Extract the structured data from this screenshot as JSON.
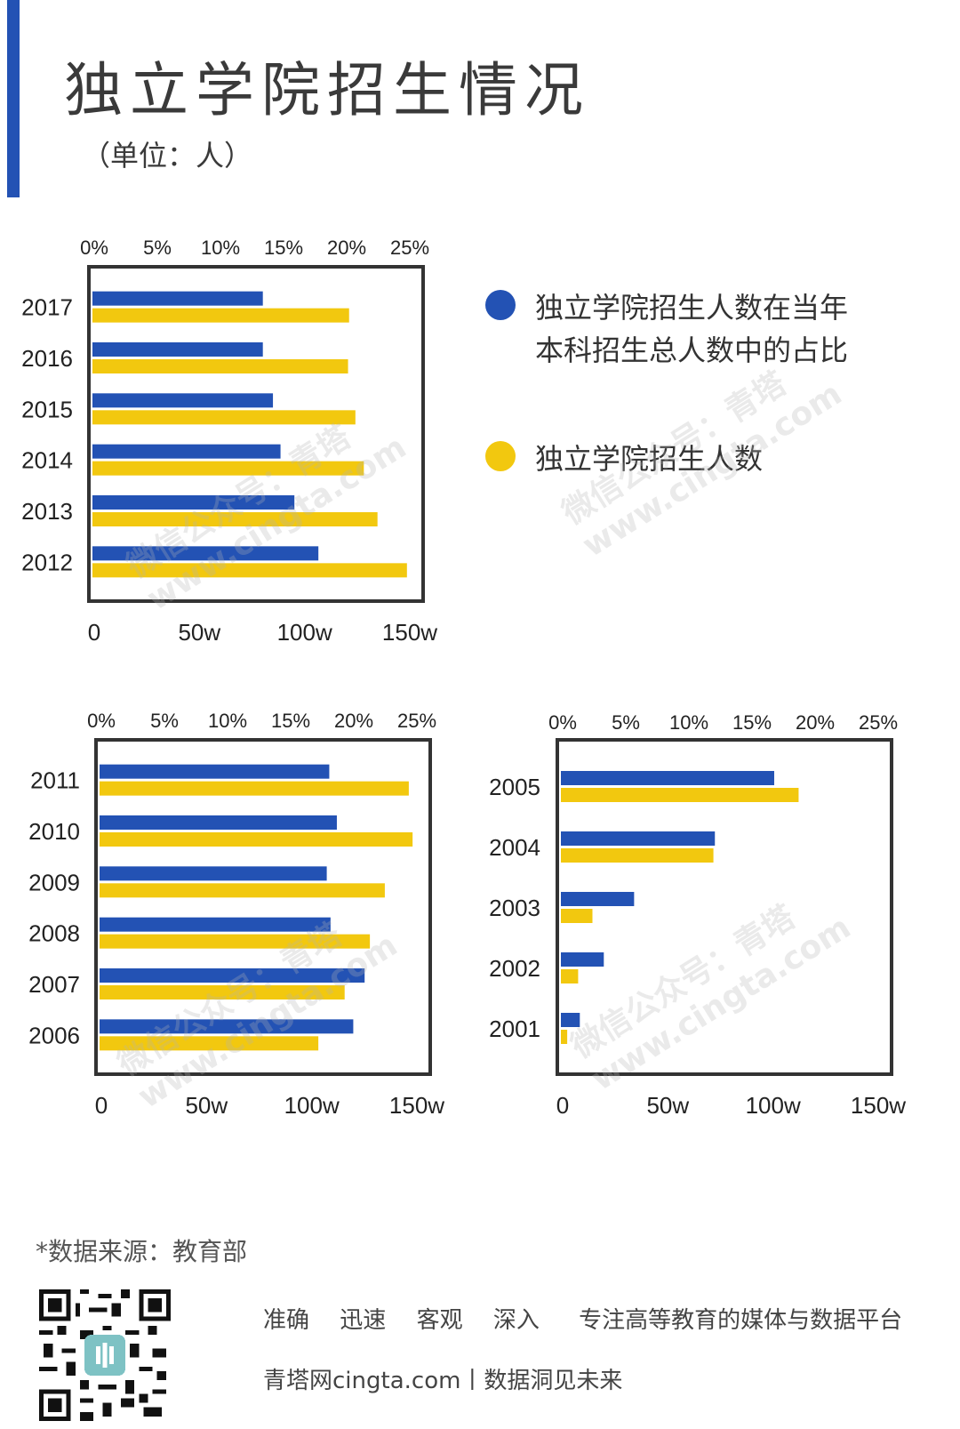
{
  "header": {
    "title": "独立学院招生情况",
    "subtitle": "（单位：人）"
  },
  "legend": {
    "items": [
      {
        "label_line1": "独立学院招生人数在当年",
        "label_line2": "本科招生总人数中的占比",
        "color": "#2352b4"
      },
      {
        "label_line1": "独立学院招生人数",
        "label_line2": "",
        "color": "#f2c80f"
      }
    ]
  },
  "colors": {
    "share": "#2352b4",
    "count": "#f2c80f",
    "frame": "#333333",
    "accent": "#2352b4"
  },
  "chart_data": [
    {
      "type": "bar",
      "orientation": "horizontal",
      "categories": [
        "2017",
        "2016",
        "2015",
        "2014",
        "2013",
        "2012"
      ],
      "series": [
        {
          "name": "独立学院招生人数在当年本科招生总人数中的占比",
          "axis": "top",
          "unit": "%",
          "values": [
            13.5,
            13.5,
            14.3,
            14.9,
            16.0,
            17.9
          ]
        },
        {
          "name": "独立学院招生人数",
          "axis": "bottom",
          "unit": "人",
          "values": [
            1220000,
            1215000,
            1250000,
            1290000,
            1355000,
            1495000
          ]
        }
      ],
      "top_axis": {
        "ticks": [
          "0%",
          "5%",
          "10%",
          "15%",
          "20%",
          "25%"
        ],
        "range": [
          0,
          25
        ]
      },
      "bottom_axis": {
        "ticks": [
          "0",
          "50w",
          "100w",
          "150w"
        ],
        "range": [
          0,
          1500000
        ]
      }
    },
    {
      "type": "bar",
      "orientation": "horizontal",
      "categories": [
        "2011",
        "2010",
        "2009",
        "2008",
        "2007",
        "2006"
      ],
      "series": [
        {
          "name": "独立学院招生人数在当年本科招生总人数中的占比",
          "axis": "top",
          "unit": "%",
          "values": [
            18.2,
            18.8,
            18.0,
            18.3,
            21.0,
            20.1
          ]
        },
        {
          "name": "独立学院招生人数",
          "axis": "bottom",
          "unit": "人",
          "values": [
            1470000,
            1488000,
            1356000,
            1285000,
            1165000,
            1040000
          ]
        }
      ],
      "top_axis": {
        "ticks": [
          "0%",
          "5%",
          "10%",
          "15%",
          "20%",
          "25%"
        ],
        "range": [
          0,
          25
        ]
      },
      "bottom_axis": {
        "ticks": [
          "0",
          "50w",
          "100w",
          "150w"
        ],
        "range": [
          0,
          1500000
        ]
      }
    },
    {
      "type": "bar",
      "orientation": "horizontal",
      "categories": [
        "2005",
        "2004",
        "2003",
        "2002",
        "2001"
      ],
      "series": [
        {
          "name": "独立学院招生人数在当年本科招生总人数中的占比",
          "axis": "top",
          "unit": "%",
          "values": [
            16.9,
            12.2,
            5.8,
            3.4,
            1.5
          ]
        },
        {
          "name": "独立学院招生人数",
          "axis": "bottom",
          "unit": "人",
          "values": [
            1130000,
            725000,
            150000,
            82000,
            30000
          ]
        }
      ],
      "top_axis": {
        "ticks": [
          "0%",
          "5%",
          "10%",
          "15%",
          "20%",
          "25%"
        ],
        "range": [
          0,
          25
        ]
      },
      "bottom_axis": {
        "ticks": [
          "0",
          "50w",
          "100w",
          "150w"
        ],
        "range": [
          0,
          1500000
        ]
      }
    }
  ],
  "footer": {
    "source": "*数据来源：教育部",
    "slogans": [
      "准确",
      "迅速",
      "客观",
      "深入"
    ],
    "tagline": "专注高等教育的媒体与数据平台",
    "site": "青塔网cingta.com丨数据洞见未来"
  },
  "watermark": {
    "line1": "微信公众号：青塔",
    "line2": "www.cingta.com"
  }
}
